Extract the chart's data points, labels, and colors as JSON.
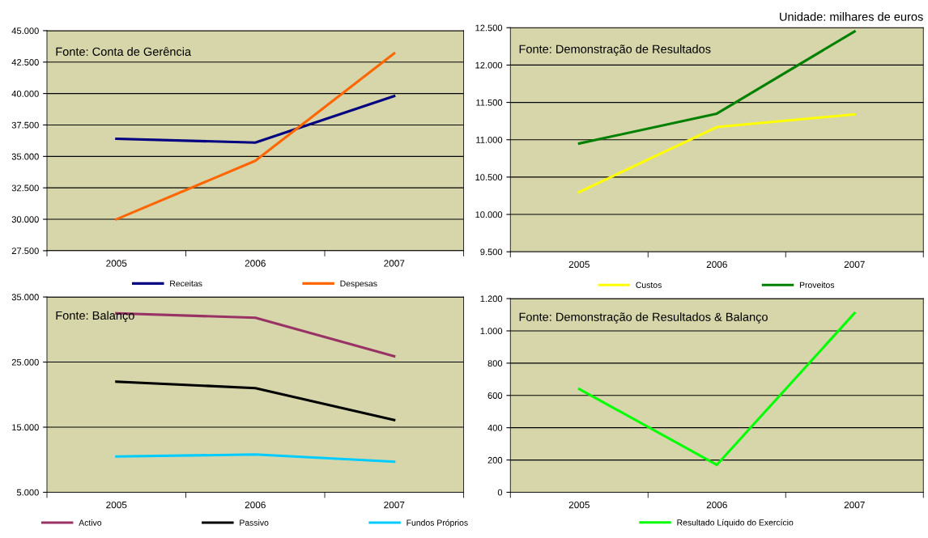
{
  "chart_data": [
    {
      "type": "line",
      "categories": [
        "2005",
        "2006",
        "2007"
      ],
      "ylim": [
        27500,
        45000
      ],
      "yticks": [
        {
          "value": 27500,
          "label": "27.500"
        },
        {
          "value": 30000,
          "label": "30.000"
        },
        {
          "value": 32500,
          "label": "32.500"
        },
        {
          "value": 35000,
          "label": "35.000"
        },
        {
          "value": 37500,
          "label": "37.500"
        },
        {
          "value": 40000,
          "label": "40.000"
        },
        {
          "value": 42500,
          "label": "42.500"
        },
        {
          "value": 45000,
          "label": "45.000"
        }
      ],
      "grid": "y",
      "legend": "bottom",
      "marker": "none",
      "annotations": [
        "Fonte: Conta de Gerência"
      ],
      "series": [
        {
          "name": "Receitas",
          "color": "#000080",
          "values": [
            36400,
            36100,
            39800
          ]
        },
        {
          "name": "Despesas",
          "color": "#ff6600",
          "values": [
            30000,
            34650,
            43200
          ]
        }
      ]
    },
    {
      "type": "line",
      "categories": [
        "2005",
        "2006",
        "2007"
      ],
      "ylim": [
        9500,
        12500
      ],
      "yticks": [
        {
          "value": 9500,
          "label": "9.500"
        },
        {
          "value": 10000,
          "label": "10.000"
        },
        {
          "value": 10500,
          "label": "10.500"
        },
        {
          "value": 11000,
          "label": "11.000"
        },
        {
          "value": 11500,
          "label": "11.500"
        },
        {
          "value": 12000,
          "label": "12.000"
        },
        {
          "value": 12500,
          "label": "12.500"
        }
      ],
      "grid": "y",
      "legend": "bottom",
      "marker": "none",
      "annotations": [
        "Fonte: Demonstração de Resultados",
        "Unidade: milhares de euros"
      ],
      "series": [
        {
          "name": "Custos",
          "color": "#ffff00",
          "values": [
            10300,
            11170,
            11340
          ]
        },
        {
          "name": "Proveitos",
          "color": "#008000",
          "values": [
            10950,
            11350,
            12450
          ]
        }
      ]
    },
    {
      "type": "line",
      "categories": [
        "2005",
        "2006",
        "2007"
      ],
      "ylim": [
        5000,
        35000
      ],
      "yticks": [
        {
          "value": 5000,
          "label": "5.000"
        },
        {
          "value": 15000,
          "label": "15.000"
        },
        {
          "value": 25000,
          "label": "25.000"
        },
        {
          "value": 35000,
          "label": "35.000"
        }
      ],
      "grid": "y",
      "legend": "bottom",
      "marker": "none",
      "annotations": [
        "Fonte: Balanço"
      ],
      "series": [
        {
          "name": "Activo",
          "color": "#993366",
          "values": [
            32500,
            31800,
            25900
          ]
        },
        {
          "name": "Passivo",
          "color": "#000000",
          "values": [
            22000,
            21000,
            16100
          ]
        },
        {
          "name": "Fundos Próprios",
          "color": "#00ccff",
          "values": [
            10500,
            10800,
            9700
          ]
        }
      ]
    },
    {
      "type": "line",
      "categories": [
        "2005",
        "2006",
        "2007"
      ],
      "ylim": [
        0,
        1200
      ],
      "yticks": [
        {
          "value": 0,
          "label": "0"
        },
        {
          "value": 200,
          "label": "200"
        },
        {
          "value": 400,
          "label": "400"
        },
        {
          "value": 600,
          "label": "600"
        },
        {
          "value": 800,
          "label": "800"
        },
        {
          "value": 1000,
          "label": "1.000"
        },
        {
          "value": 1200,
          "label": "1.200"
        }
      ],
      "grid": "y",
      "legend": "bottom",
      "marker": "none",
      "annotations": [
        "Fonte: Demonstração de Resultados & Balanço"
      ],
      "series": [
        {
          "name": "Resultado Líquido do Exercício",
          "color": "#00ff00",
          "values": [
            640,
            170,
            1110
          ]
        }
      ]
    }
  ]
}
